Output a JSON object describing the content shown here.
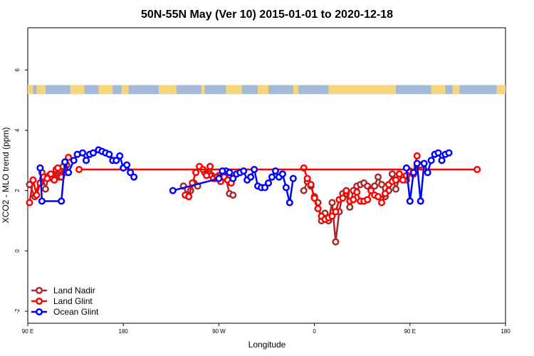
{
  "chart_data": {
    "type": "line",
    "title": "50N-55N May (Ver 10)   2015-01-01 to 2020-12-18",
    "xlabel": "Longitude",
    "ylabel": "XCO2 - MLO trend (ppm)",
    "xlim": [
      -90,
      180
    ],
    "ylim": [
      -2.4,
      7.4
    ],
    "x_ticks": [
      {
        "value": -90,
        "label": "90 E"
      },
      {
        "value": -36,
        "label": "180"
      },
      {
        "value": 18,
        "label": "90 W"
      },
      {
        "value": 72,
        "label": "0"
      },
      {
        "value": 126,
        "label": "90 E"
      },
      {
        "value": 180,
        "label": "180"
      }
    ],
    "y_ticks": [
      {
        "value": -2,
        "label": "-2"
      },
      {
        "value": 0,
        "label": "0"
      },
      {
        "value": 2,
        "label": "2"
      },
      {
        "value": 4,
        "label": "4"
      },
      {
        "value": 6,
        "label": "6"
      }
    ],
    "land_ocean_band": {
      "y_range": [
        5.2,
        5.5
      ],
      "ocean_color": "#a3b9d9",
      "land_color": "#f7d67a",
      "land_segments": [
        [
          -90,
          -87
        ],
        [
          -85,
          -80
        ],
        [
          -66,
          -58
        ],
        [
          -50,
          -42
        ],
        [
          -37,
          -33
        ],
        [
          -16,
          -6
        ],
        [
          8,
          10
        ],
        [
          22,
          31
        ],
        [
          40,
          46
        ],
        [
          60,
          63
        ],
        [
          80,
          95
        ],
        [
          93,
          118
        ],
        [
          138,
          146
        ],
        [
          150,
          154
        ],
        [
          175,
          180
        ]
      ]
    },
    "legend_position": "bottom-left",
    "series": [
      {
        "name": "Land Nadir",
        "color": "#a52a2a",
        "segments": [
          [
            [
              -89,
              2.2
            ],
            [
              -86,
              1.8
            ],
            [
              -82,
              2.6
            ],
            [
              -80,
              2.05
            ],
            [
              -78,
              2.5
            ],
            [
              -76,
              2.4
            ],
            [
              -74,
              2.7
            ],
            [
              -72,
              2.45
            ],
            [
              -70,
              2.8
            ],
            [
              -68,
              2.85
            ]
          ],
          [
            [
              -2,
              2.15
            ],
            [
              0,
              1.85
            ],
            [
              2,
              2.0
            ],
            [
              4,
              2.25
            ],
            [
              6,
              2.15
            ]
          ],
          [
            [
              10,
              2.6
            ],
            [
              12,
              2.55
            ],
            [
              14,
              2.5
            ],
            [
              16,
              2.4
            ],
            [
              18,
              2.5
            ],
            [
              20,
              2.45
            ],
            [
              22,
              2.4
            ],
            [
              24,
              1.9
            ],
            [
              26,
              1.85
            ]
          ],
          [
            [
              66,
              2.0
            ],
            [
              68,
              2.3
            ],
            [
              70,
              2.15
            ],
            [
              72,
              1.8
            ],
            [
              74,
              1.6
            ],
            [
              76,
              1.0
            ],
            [
              78,
              1.25
            ],
            [
              80,
              1.0
            ],
            [
              82,
              1.6
            ],
            [
              84,
              0.3
            ],
            [
              86,
              1.3
            ],
            [
              88,
              1.9
            ],
            [
              90,
              1.9
            ],
            [
              92,
              1.45
            ],
            [
              94,
              2.0
            ],
            [
              96,
              2.15
            ],
            [
              98,
              2.2
            ],
            [
              100,
              2.25
            ],
            [
              102,
              2.15
            ],
            [
              104,
              2.05
            ],
            [
              106,
              2.15
            ],
            [
              108,
              2.45
            ],
            [
              110,
              2.2
            ],
            [
              112,
              1.8
            ],
            [
              114,
              2.0
            ],
            [
              116,
              2.55
            ],
            [
              118,
              2.05
            ],
            [
              120,
              2.4
            ],
            [
              122,
              2.45
            ],
            [
              124,
              2.35
            ],
            [
              126,
              2.6
            ],
            [
              128,
              2.55
            ],
            [
              130,
              2.8
            ],
            [
              132,
              2.85
            ]
          ]
        ]
      },
      {
        "name": "Land Glint",
        "color": "#ff0000",
        "segments": [
          [
            [
              -89,
              1.6
            ],
            [
              -87,
              2.35
            ],
            [
              -85,
              1.85
            ],
            [
              -83,
              2.25
            ],
            [
              -81,
              2.45
            ],
            [
              -79,
              2.4
            ],
            [
              -77,
              2.55
            ],
            [
              -75,
              2.35
            ],
            [
              -73,
              2.75
            ],
            [
              -71,
              2.45
            ],
            [
              -69,
              2.6
            ],
            [
              -67,
              3.1
            ]
          ],
          [
            [
              -1,
              1.85
            ],
            [
              1,
              1.8
            ],
            [
              3,
              2.25
            ],
            [
              5,
              2.6
            ],
            [
              7,
              2.8
            ],
            [
              9,
              2.7
            ],
            [
              11,
              2.5
            ],
            [
              13,
              2.8
            ],
            [
              15,
              2.4
            ],
            [
              17,
              2.45
            ],
            [
              19,
              2.3
            ],
            [
              21,
              2.45
            ],
            [
              23,
              2.35
            ],
            [
              25,
              2.25
            ]
          ],
          [
            [
              66,
              2.75
            ],
            [
              68,
              2.4
            ],
            [
              70,
              2.2
            ],
            [
              72,
              1.75
            ],
            [
              74,
              1.4
            ],
            [
              76,
              1.15
            ],
            [
              78,
              1.05
            ],
            [
              80,
              1.1
            ],
            [
              82,
              1.15
            ],
            [
              84,
              1.3
            ],
            [
              86,
              1.7
            ],
            [
              88,
              1.75
            ],
            [
              90,
              2.0
            ],
            [
              92,
              1.65
            ],
            [
              94,
              1.7
            ],
            [
              96,
              1.95
            ],
            [
              98,
              1.65
            ],
            [
              100,
              1.65
            ],
            [
              102,
              1.7
            ],
            [
              104,
              2.0
            ],
            [
              106,
              1.85
            ],
            [
              108,
              1.8
            ],
            [
              110,
              1.6
            ],
            [
              112,
              1.9
            ],
            [
              114,
              2.2
            ],
            [
              116,
              2.3
            ],
            [
              118,
              2.35
            ],
            [
              120,
              2.55
            ],
            [
              122,
              2.35
            ],
            [
              124,
              2.5
            ],
            [
              126,
              2.65
            ],
            [
              128,
              2.55
            ],
            [
              130,
              3.15
            ]
          ],
          [
            [
              -61,
              2.7
            ],
            [
              164,
              2.7
            ]
          ]
        ]
      },
      {
        "name": "Ocean Glint",
        "color": "#0000ff",
        "segments": [
          [
            [
              -83,
              2.75
            ],
            [
              -82,
              1.65
            ],
            [
              -71,
              1.65
            ],
            [
              -69,
              2.95
            ],
            [
              -67,
              2.6
            ],
            [
              -64,
              3.0
            ],
            [
              -62,
              3.2
            ],
            [
              -59,
              3.25
            ],
            [
              -57,
              3.0
            ],
            [
              -55,
              3.2
            ],
            [
              -53,
              3.25
            ],
            [
              -50,
              3.35
            ],
            [
              -48,
              3.3
            ],
            [
              -46,
              3.25
            ],
            [
              -44,
              3.2
            ],
            [
              -42,
              3.0
            ],
            [
              -40,
              3.0
            ],
            [
              -38,
              3.15
            ],
            [
              -36,
              2.75
            ],
            [
              -34,
              2.85
            ],
            [
              -32,
              2.6
            ],
            [
              -30,
              2.45
            ]
          ],
          [
            [
              22,
              2.65
            ],
            [
              24,
              2.6
            ],
            [
              26,
              2.4
            ],
            [
              28,
              2.55
            ],
            [
              30,
              2.6
            ],
            [
              32,
              2.65
            ],
            [
              34,
              2.35
            ],
            [
              36,
              2.45
            ],
            [
              38,
              2.7
            ],
            [
              40,
              2.15
            ],
            [
              42,
              2.1
            ],
            [
              44,
              2.1
            ],
            [
              46,
              2.25
            ],
            [
              48,
              2.45
            ],
            [
              50,
              2.65
            ],
            [
              52,
              2.45
            ],
            [
              54,
              2.55
            ],
            [
              56,
              2.1
            ],
            [
              58,
              1.6
            ],
            [
              60,
              2.4
            ]
          ],
          [
            [
              124,
              2.75
            ],
            [
              126,
              1.65
            ],
            [
              128,
              2.6
            ],
            [
              130,
              2.9
            ],
            [
              132,
              1.65
            ],
            [
              134,
              2.9
            ],
            [
              136,
              2.6
            ],
            [
              138,
              3.0
            ],
            [
              140,
              3.2
            ],
            [
              142,
              3.25
            ],
            [
              144,
              3.0
            ],
            [
              146,
              3.2
            ],
            [
              148,
              3.25
            ]
          ],
          [
            [
              -8,
              2.0
            ],
            [
              18,
              2.4
            ],
            [
              20,
              2.65
            ]
          ]
        ]
      }
    ]
  }
}
